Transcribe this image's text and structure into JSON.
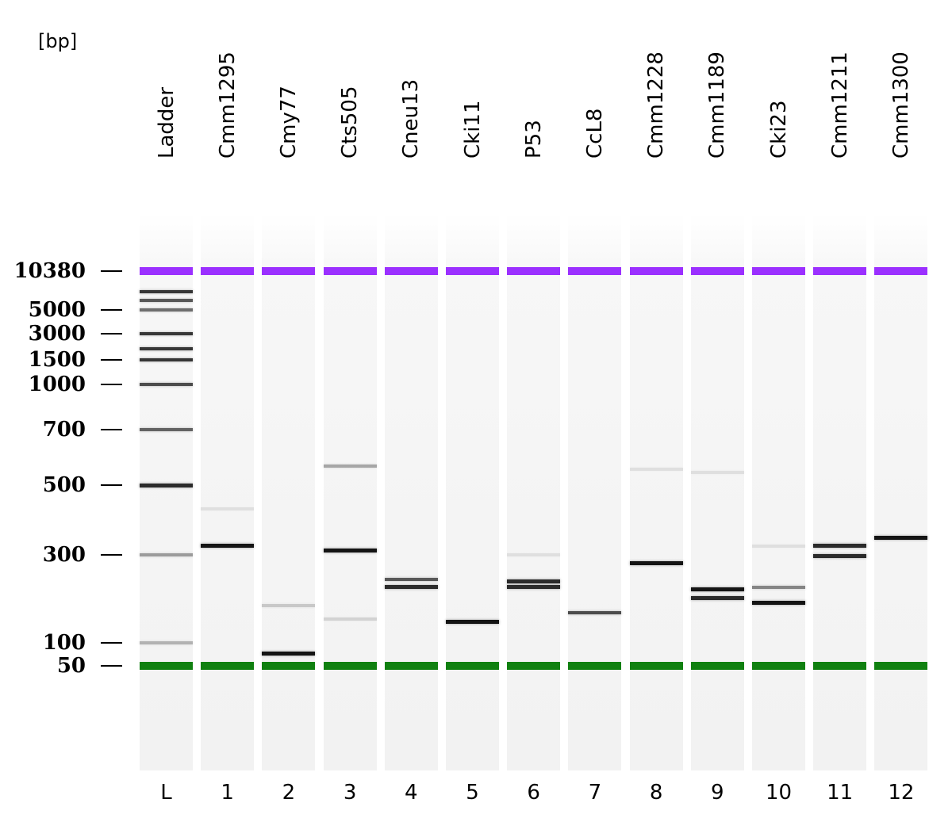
{
  "unit_label": "[bp]",
  "colors": {
    "upper_marker": "#9b30ff",
    "lower_marker": "#108010",
    "background": "#ffffff",
    "band": "#1a1a1a"
  },
  "size_axis": [
    {
      "label": "10380",
      "bp": 10380
    },
    {
      "label": "5000",
      "bp": 5000
    },
    {
      "label": "3000",
      "bp": 3000
    },
    {
      "label": "1500",
      "bp": 1500
    },
    {
      "label": "1000",
      "bp": 1000
    },
    {
      "label": "700",
      "bp": 700
    },
    {
      "label": "500",
      "bp": 500
    },
    {
      "label": "300",
      "bp": 300
    },
    {
      "label": "100",
      "bp": 100
    },
    {
      "label": "50",
      "bp": 50
    }
  ],
  "lanes": [
    {
      "name": "Ladder",
      "number": "L",
      "bands": [
        {
          "bp": 7000,
          "intensity": 0.85
        },
        {
          "bp": 6000,
          "intensity": 0.7
        },
        {
          "bp": 5000,
          "intensity": 0.6
        },
        {
          "bp": 3000,
          "intensity": 0.85
        },
        {
          "bp": 2000,
          "intensity": 0.85
        },
        {
          "bp": 1500,
          "intensity": 0.85
        },
        {
          "bp": 1000,
          "intensity": 0.75
        },
        {
          "bp": 700,
          "intensity": 0.65
        },
        {
          "bp": 500,
          "intensity": 0.9
        },
        {
          "bp": 300,
          "intensity": 0.4
        },
        {
          "bp": 100,
          "intensity": 0.3
        }
      ]
    },
    {
      "name": "Cmm1295",
      "number": "1",
      "bands": [
        {
          "bp": 320,
          "intensity": 1.0
        },
        {
          "bp": 420,
          "intensity": 0.1
        }
      ]
    },
    {
      "name": "Cmy77",
      "number": "2",
      "bands": [
        {
          "bp": 72,
          "intensity": 1.0
        },
        {
          "bp": 160,
          "intensity": 0.2
        }
      ]
    },
    {
      "name": "Cts505",
      "number": "3",
      "bands": [
        {
          "bp": 310,
          "intensity": 1.0
        },
        {
          "bp": 560,
          "intensity": 0.35
        },
        {
          "bp": 135,
          "intensity": 0.15
        }
      ]
    },
    {
      "name": "Cneu13",
      "number": "4",
      "bands": [
        {
          "bp": 220,
          "intensity": 0.7
        },
        {
          "bp": 200,
          "intensity": 0.9
        }
      ]
    },
    {
      "name": "Cki11",
      "number": "5",
      "bands": [
        {
          "bp": 130,
          "intensity": 1.0
        }
      ]
    },
    {
      "name": "P53",
      "number": "6",
      "bands": [
        {
          "bp": 215,
          "intensity": 0.9
        },
        {
          "bp": 200,
          "intensity": 0.9
        },
        {
          "bp": 300,
          "intensity": 0.1
        }
      ]
    },
    {
      "name": "CcL8",
      "number": "7",
      "bands": [
        {
          "bp": 145,
          "intensity": 0.75
        }
      ]
    },
    {
      "name": "Cmm1228",
      "number": "8",
      "bands": [
        {
          "bp": 270,
          "intensity": 1.0
        },
        {
          "bp": 550,
          "intensity": 0.1
        }
      ]
    },
    {
      "name": "Cmm1189",
      "number": "9",
      "bands": [
        {
          "bp": 195,
          "intensity": 1.0
        },
        {
          "bp": 175,
          "intensity": 0.9
        },
        {
          "bp": 540,
          "intensity": 0.1
        }
      ]
    },
    {
      "name": "Cki23",
      "number": "10",
      "bands": [
        {
          "bp": 200,
          "intensity": 0.5
        },
        {
          "bp": 165,
          "intensity": 1.0
        },
        {
          "bp": 320,
          "intensity": 0.1
        }
      ]
    },
    {
      "name": "Cmm1211",
      "number": "11",
      "bands": [
        {
          "bp": 320,
          "intensity": 0.9
        },
        {
          "bp": 295,
          "intensity": 0.9
        }
      ]
    },
    {
      "name": "Cmm1300",
      "number": "12",
      "bands": [
        {
          "bp": 340,
          "intensity": 1.0
        }
      ]
    }
  ]
}
